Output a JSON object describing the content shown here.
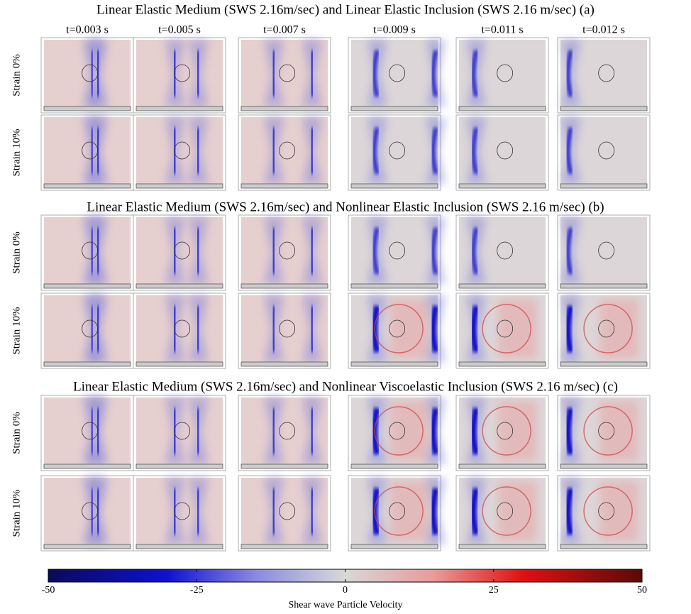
{
  "sections": [
    {
      "title": "Linear Elastic Medium (SWS 2.16m/sec) and Linear Elastic Inclusion (SWS 2.16 m/sec) (a)",
      "rows": [
        "Strain 0%",
        "Strain 10%"
      ]
    },
    {
      "title": "Linear Elastic Medium (SWS 2.16m/sec) and Nonlinear Elastic Inclusion (SWS 2.16 m/sec) (b)",
      "rows": [
        "Strain 0%",
        "Strain 10%"
      ]
    },
    {
      "title": "Linear Elastic Medium (SWS 2.16m/sec) and Nonlinear Viscoelastic Inclusion (SWS 2.16 m/sec) (c)",
      "rows": [
        "Strain 0%",
        "Strain 10%"
      ]
    }
  ],
  "times": [
    "t=0.003 s",
    "t=0.005 s",
    "t=0.007 s",
    "t=0.009 s",
    "t=0.011 s",
    "t=0.012 s"
  ],
  "colorbar": {
    "ticks": [
      -50,
      -25,
      0,
      25,
      50
    ],
    "label": "Shear wave Particle Velocity"
  }
}
